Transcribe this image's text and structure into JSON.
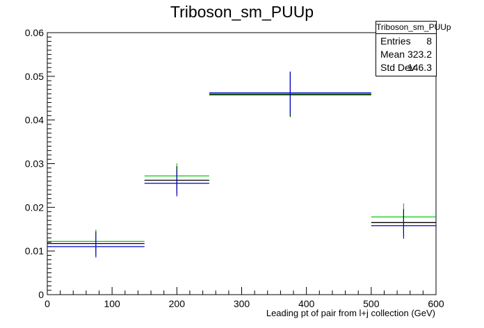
{
  "chart_data": {
    "type": "histogram",
    "title": "Triboson_sm_PUUp",
    "xlabel": "Leading pt of pair from l+j collection (GeV)",
    "ylabel": "",
    "xlim": [
      0,
      600
    ],
    "ylim": [
      0,
      0.06
    ],
    "x_ticks": [
      "0",
      "100",
      "200",
      "300",
      "400",
      "500",
      "600"
    ],
    "y_ticks": [
      "0",
      "0.01",
      "0.02",
      "0.03",
      "0.04",
      "0.05",
      "0.06"
    ],
    "grid": false,
    "series": [
      {
        "color": "#00cc00",
        "bins": [
          {
            "low": 0,
            "high": 150,
            "center": 75,
            "value": 0.0122,
            "err": 0.0027
          },
          {
            "low": 150,
            "high": 250,
            "center": 200,
            "value": 0.0272,
            "err": 0.0029
          },
          {
            "low": 250,
            "high": 500,
            "center": 375,
            "value": 0.0457,
            "err": 0.0051
          },
          {
            "low": 500,
            "high": 600,
            "center": 550,
            "value": 0.0178,
            "err": 0.0031
          }
        ]
      },
      {
        "color": "#000000",
        "bins": [
          {
            "low": 0,
            "high": 150,
            "center": 75,
            "value": 0.0117,
            "err": 0.0028
          },
          {
            "low": 150,
            "high": 250,
            "center": 200,
            "value": 0.0262,
            "err": 0.0032
          },
          {
            "low": 250,
            "high": 500,
            "center": 375,
            "value": 0.0459,
            "err": 0.0051
          },
          {
            "low": 500,
            "high": 600,
            "center": 550,
            "value": 0.0165,
            "err": 0.0031
          }
        ]
      },
      {
        "color": "#0000cc",
        "bins": [
          {
            "low": 0,
            "high": 150,
            "center": 75,
            "value": 0.011,
            "err": 0.0025
          },
          {
            "low": 150,
            "high": 250,
            "center": 200,
            "value": 0.0255,
            "err": 0.003
          },
          {
            "low": 250,
            "high": 500,
            "center": 375,
            "value": 0.0462,
            "err": 0.0049
          },
          {
            "low": 500,
            "high": 600,
            "center": 550,
            "value": 0.0158,
            "err": 0.003
          }
        ]
      }
    ],
    "stats": {
      "name": "Triboson_sm_PUUp",
      "rows": [
        {
          "label": "Entries",
          "value": "8"
        },
        {
          "label": "Mean",
          "value": "323.2"
        },
        {
          "label": "Std Dev",
          "value": "146.3"
        }
      ]
    }
  }
}
